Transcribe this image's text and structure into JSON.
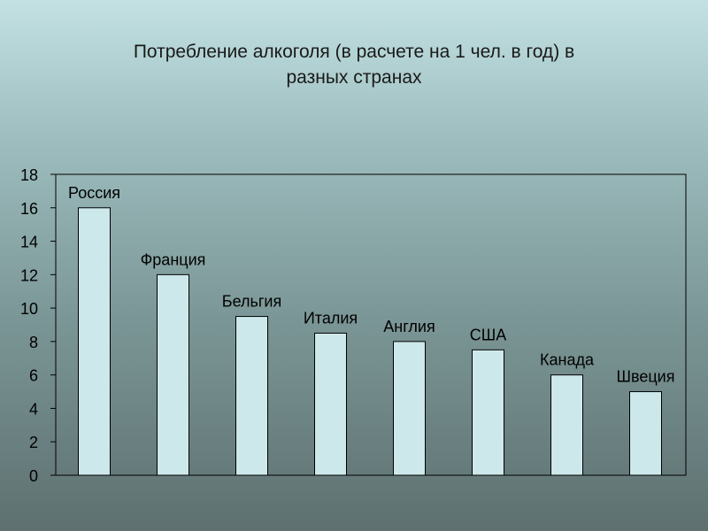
{
  "slide": {
    "title_line1": "Потребление алкоголя (в расчете на 1 чел. в год) в",
    "title_line2": "разных странах"
  },
  "chart_data": {
    "type": "bar",
    "title": "Потребление алкоголя (в расчете на 1 чел. в год) в разных странах",
    "xlabel": "",
    "ylabel": "",
    "categories": [
      "Россия",
      "Франция",
      "Бельгия",
      "Италия",
      "Англия",
      "США",
      "Канада",
      "Швеция"
    ],
    "values": [
      16,
      12,
      9.5,
      8.5,
      8,
      7.5,
      6,
      5
    ],
    "ylim": [
      0,
      18
    ],
    "yticks": [
      0,
      2,
      4,
      6,
      8,
      10,
      12,
      14,
      16,
      18
    ],
    "grid": false,
    "legend": "none",
    "data_labels": "category names above bars",
    "colors": {
      "bar_fill": "#cde8ea",
      "bar_stroke": "#000000",
      "axis": "#000000"
    }
  }
}
